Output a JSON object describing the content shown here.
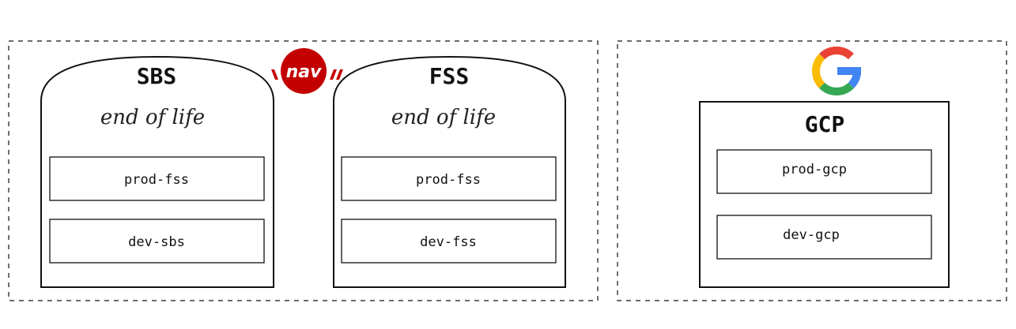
{
  "groups": {
    "onprem": {
      "datacenters": [
        {
          "title": "SBS",
          "subtitle": "end of life",
          "clusters": [
            "prod-fss",
            "dev-sbs"
          ]
        },
        {
          "title": "FSS",
          "subtitle": "end of life",
          "clusters": [
            "prod-fss",
            "dev-fss"
          ]
        }
      ],
      "logo": {
        "text": "nav",
        "color": "#c30000",
        "icon": "nav-logo"
      }
    },
    "cloud": {
      "logo": {
        "icon": "google-logo"
      },
      "provider": {
        "title": "GCP",
        "clusters": [
          "prod-gcp",
          "dev-gcp"
        ]
      }
    }
  },
  "colors": {
    "google_blue": "#4285F4",
    "google_red": "#EA4335",
    "google_yellow": "#FBBC05",
    "google_green": "#34A853"
  }
}
